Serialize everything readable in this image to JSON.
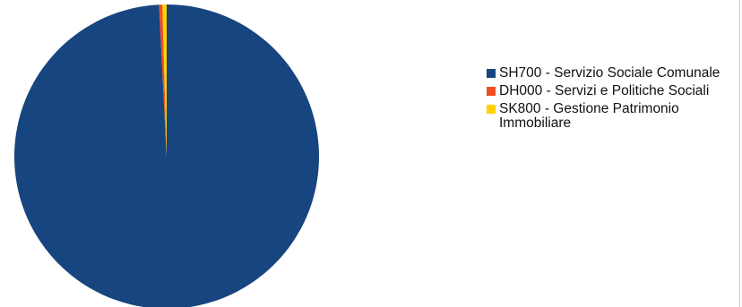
{
  "chart_data": {
    "type": "pie",
    "title": "",
    "start_angle_deg": -90,
    "direction": "clockwise",
    "legend_position": "right",
    "slices": [
      {
        "label": "SH700 - Servizio Sociale Comunale",
        "value": 99.2,
        "color": "#17457f"
      },
      {
        "label": "DH000 - Servizi e Politiche Sociali",
        "value": 0.35,
        "color": "#f04f23"
      },
      {
        "label": "SK800 - Gestione Patrimonio Immobiliare",
        "value": 0.45,
        "color": "#ffd200"
      }
    ]
  }
}
